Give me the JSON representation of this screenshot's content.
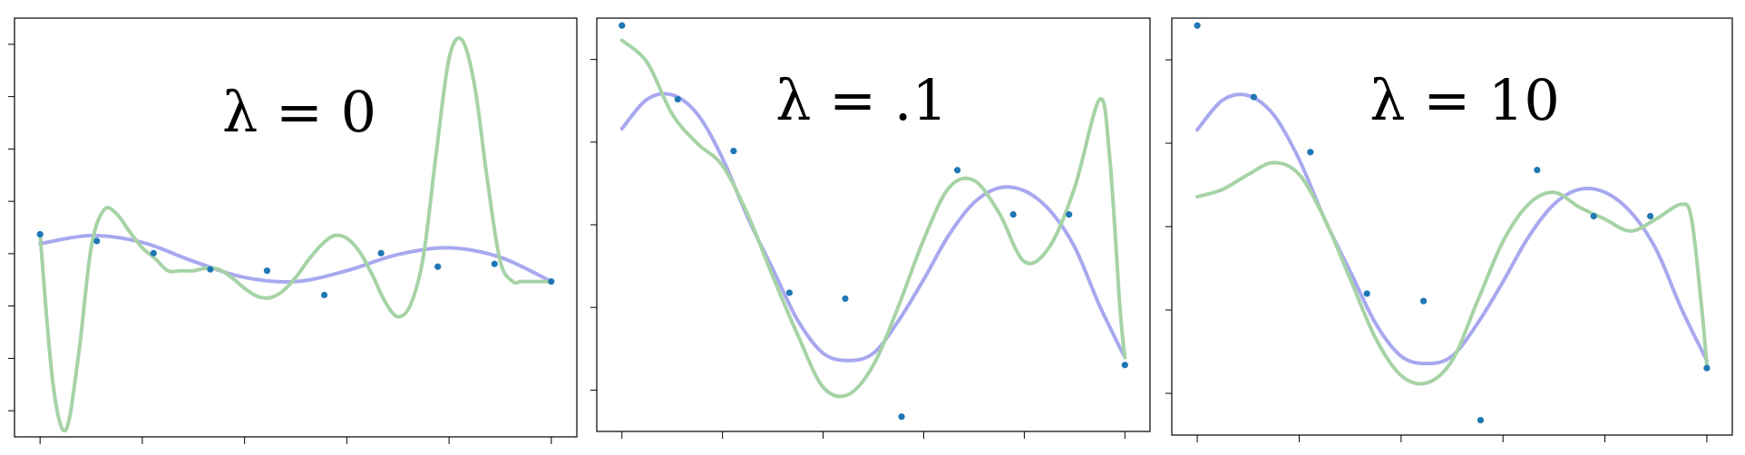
{
  "colors": {
    "points": "#1f77b4",
    "smooth_fit": "#a8a8f0",
    "regularized_fit": "#a6d3a6"
  },
  "chart_data": [
    {
      "type": "line",
      "title": "λ = 0",
      "xlabel": "",
      "ylabel": "",
      "xlim": [
        -0.05,
        1.05
      ],
      "ylim": [
        -1.6,
        1.5
      ],
      "grid": false,
      "x_ticks": 6,
      "y_ticks": 8,
      "series": [
        {
          "role": "smooth_fit",
          "x": [
            0,
            0.1,
            0.2,
            0.3,
            0.4,
            0.5,
            0.6,
            0.7,
            0.8,
            0.9,
            1
          ],
          "y": [
            -0.17,
            -0.11,
            -0.16,
            -0.3,
            -0.42,
            -0.45,
            -0.37,
            -0.25,
            -0.2,
            -0.27,
            -0.45
          ]
        },
        {
          "role": "regularized_fit",
          "x": [
            0,
            0.025,
            0.05,
            0.075,
            0.1,
            0.125,
            0.15,
            0.175,
            0.2,
            0.225,
            0.25,
            0.275,
            0.3,
            0.325,
            0.35,
            0.375,
            0.4,
            0.425,
            0.45,
            0.475,
            0.5,
            0.525,
            0.55,
            0.575,
            0.6,
            0.625,
            0.65,
            0.675,
            0.7,
            0.725,
            0.75,
            0.775,
            0.8,
            0.825,
            0.85,
            0.875,
            0.9,
            0.925,
            0.94,
            0.96,
            0.98,
            1
          ],
          "y": [
            -0.1,
            -1.2,
            -1.55,
            -1.0,
            -0.2,
            0.08,
            0.05,
            -0.08,
            -0.2,
            -0.28,
            -0.37,
            -0.37,
            -0.37,
            -0.35,
            -0.36,
            -0.42,
            -0.5,
            -0.56,
            -0.57,
            -0.52,
            -0.42,
            -0.29,
            -0.18,
            -0.11,
            -0.13,
            -0.23,
            -0.4,
            -0.6,
            -0.71,
            -0.62,
            -0.26,
            0.5,
            1.2,
            1.34,
            1.0,
            0.3,
            -0.3,
            -0.45,
            -0.45,
            -0.45,
            -0.45,
            -0.45
          ]
        }
      ],
      "points": {
        "x": [
          0,
          0.111,
          0.222,
          0.333,
          0.444,
          0.556,
          0.667,
          0.778,
          0.889,
          1
        ],
        "y": [
          -0.1,
          -0.15,
          -0.24,
          -0.36,
          -0.37,
          -0.55,
          -0.24,
          -0.34,
          -0.32,
          -0.45
        ]
      }
    },
    {
      "type": "line",
      "title": "λ = .1",
      "xlabel": "",
      "ylabel": "",
      "xlim": [
        -0.05,
        1.05
      ],
      "ylim": [
        -1.45,
        1.35
      ],
      "grid": false,
      "x_ticks": 6,
      "y_ticks": 5,
      "series": [
        {
          "role": "smooth_fit",
          "x": [
            0,
            0.05,
            0.1,
            0.15,
            0.2,
            0.25,
            0.3,
            0.35,
            0.4,
            0.45,
            0.5,
            0.55,
            0.6,
            0.65,
            0.7,
            0.75,
            0.8,
            0.85,
            0.9,
            0.95,
            1
          ],
          "y": [
            0.6,
            0.8,
            0.83,
            0.7,
            0.4,
            0.0,
            -0.35,
            -0.7,
            -0.92,
            -0.97,
            -0.92,
            -0.7,
            -0.42,
            -0.12,
            0.1,
            0.2,
            0.18,
            0.05,
            -0.2,
            -0.6,
            -0.95
          ]
        },
        {
          "role": "regularized_fit",
          "x": [
            0,
            0.05,
            0.1,
            0.15,
            0.2,
            0.25,
            0.3,
            0.35,
            0.4,
            0.45,
            0.5,
            0.55,
            0.6,
            0.65,
            0.7,
            0.75,
            0.8,
            0.85,
            0.9,
            0.95,
            0.97,
            0.99,
            1
          ],
          "y": [
            1.2,
            1.05,
            0.7,
            0.5,
            0.35,
            0.02,
            -0.4,
            -0.8,
            -1.15,
            -1.2,
            -1.0,
            -0.6,
            -0.15,
            0.2,
            0.25,
            0.03,
            -0.3,
            -0.2,
            0.2,
            0.8,
            0.4,
            -0.6,
            -0.95
          ]
        }
      ],
      "points": {
        "x": [
          0,
          0.111,
          0.222,
          0.333,
          0.444,
          0.556,
          0.667,
          0.778,
          0.889,
          1
        ],
        "y": [
          1.3,
          0.8,
          0.45,
          -0.51,
          -0.55,
          -1.35,
          0.32,
          0.02,
          0.02,
          -1.0
        ]
      }
    },
    {
      "type": "line",
      "title": "λ = 10",
      "xlabel": "",
      "ylabel": "",
      "xlim": [
        -0.05,
        1.05
      ],
      "ylim": [
        -1.45,
        1.35
      ],
      "grid": false,
      "x_ticks": 6,
      "y_ticks": 5,
      "series": [
        {
          "role": "smooth_fit",
          "x": [
            0,
            0.05,
            0.1,
            0.15,
            0.2,
            0.25,
            0.3,
            0.35,
            0.4,
            0.45,
            0.5,
            0.55,
            0.6,
            0.65,
            0.7,
            0.75,
            0.8,
            0.85,
            0.9,
            0.95,
            1
          ],
          "y": [
            0.6,
            0.8,
            0.83,
            0.7,
            0.4,
            0.0,
            -0.35,
            -0.7,
            -0.92,
            -0.97,
            -0.92,
            -0.7,
            -0.42,
            -0.12,
            0.1,
            0.2,
            0.18,
            0.05,
            -0.2,
            -0.6,
            -0.95
          ]
        },
        {
          "role": "regularized_fit",
          "x": [
            0,
            0.05,
            0.1,
            0.15,
            0.2,
            0.25,
            0.3,
            0.35,
            0.4,
            0.45,
            0.5,
            0.55,
            0.6,
            0.65,
            0.7,
            0.75,
            0.8,
            0.85,
            0.9,
            0.95,
            0.97,
            0.99,
            1
          ],
          "y": [
            0.15,
            0.2,
            0.3,
            0.38,
            0.3,
            0.0,
            -0.4,
            -0.8,
            -1.05,
            -1.1,
            -0.95,
            -0.55,
            -0.15,
            0.1,
            0.18,
            0.08,
            0.0,
            -0.08,
            0.0,
            0.1,
            0.0,
            -0.6,
            -0.98
          ]
        }
      ],
      "points": {
        "x": [
          0,
          0.111,
          0.222,
          0.333,
          0.444,
          0.556,
          0.667,
          0.778,
          0.889,
          1
        ],
        "y": [
          1.3,
          0.82,
          0.45,
          -0.5,
          -0.55,
          -1.35,
          0.33,
          0.02,
          0.02,
          -1.0
        ]
      }
    }
  ]
}
